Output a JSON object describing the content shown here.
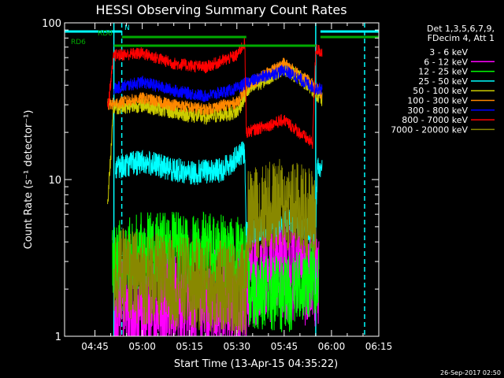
{
  "chart_data": {
    "type": "line",
    "title": "HESSI Observing Summary Count Rates",
    "xlabel": "Start Time (13-Apr-15 04:35:22)",
    "ylabel": "Count Rate (s⁻¹ detector⁻¹)",
    "yscale": "log",
    "xlim": [
      "04:35:22",
      "06:15:00"
    ],
    "ylim": [
      1,
      100
    ],
    "x_ticks": [
      "04:45",
      "05:00",
      "05:15",
      "05:30",
      "05:45",
      "06:00",
      "06:15"
    ],
    "y_ticks": [
      "1",
      "10",
      "100"
    ],
    "grid": false,
    "timestamp": "26-Sep-2017 02:50",
    "legend": {
      "position": "right",
      "header": [
        "Det 1,3,5,6,7,9,",
        "FDecim 4, Att 1"
      ]
    },
    "flags": [
      {
        "name": "N",
        "color": "#00ffff",
        "segments": [
          [
            "04:35:22",
            "04:53:30"
          ],
          [
            "05:56:30",
            "06:15:00"
          ]
        ]
      },
      {
        "name": "RD0",
        "color": "#00aa00",
        "segments": [
          [
            "04:53:30",
            "05:33:00"
          ],
          [
            "05:56:30",
            "06:15:00"
          ]
        ]
      },
      {
        "name": "RD6",
        "color": "#00aa00",
        "segments": [
          [
            "04:51:00",
            "05:33:00"
          ],
          [
            "05:33:00",
            "05:55:00"
          ]
        ]
      }
    ],
    "vlines": [
      {
        "x": "04:51:00",
        "color": "#00ffff",
        "style": "solid"
      },
      {
        "x": "04:53:30",
        "color": "#00ffff",
        "style": "dashed"
      },
      {
        "x": "05:55:00",
        "color": "#00ffff",
        "style": "solid"
      },
      {
        "x": "06:10:30",
        "color": "#00ffff",
        "style": "dashed"
      }
    ],
    "series": [
      {
        "name": "3 - 6 keV",
        "color": "#000000",
        "noise": 0.1,
        "points": [
          [
            "04:53:00",
            4
          ],
          [
            "05:10:00",
            4
          ],
          [
            "05:30:00",
            3.5
          ],
          [
            "05:33:30",
            2.5
          ],
          [
            "05:45:00",
            4
          ],
          [
            "05:55:00",
            3.5
          ]
        ]
      },
      {
        "name": "6 - 12 keV",
        "color": "#ff00ff",
        "noise": 0.35,
        "points": [
          [
            "04:51:00",
            1.5
          ],
          [
            "05:10:00",
            1.6
          ],
          [
            "05:33:00",
            1.7
          ],
          [
            "05:33:30",
            2.5
          ],
          [
            "05:45:00",
            2.8
          ],
          [
            "05:56:00",
            2.5
          ]
        ]
      },
      {
        "name": "12 - 25 keV",
        "color": "#00ff00",
        "noise": 0.25,
        "points": [
          [
            "04:50:30",
            3
          ],
          [
            "05:00:00",
            3.5
          ],
          [
            "05:20:00",
            3.5
          ],
          [
            "05:33:00",
            3.2
          ],
          [
            "05:33:30",
            2
          ],
          [
            "05:45:00",
            1.8
          ],
          [
            "05:56:00",
            2.5
          ]
        ]
      },
      {
        "name": "25 - 50 keV",
        "color": "#00ffff",
        "noise": 0.08,
        "points": [
          [
            "04:51:30",
            12
          ],
          [
            "05:00:00",
            13
          ],
          [
            "05:15:00",
            11
          ],
          [
            "05:25:00",
            11.5
          ],
          [
            "05:32:30",
            15
          ],
          [
            "05:33:00",
            4.5
          ],
          [
            "05:40:00",
            5
          ],
          [
            "05:47:00",
            5.5
          ],
          [
            "05:55:00",
            4.5
          ],
          [
            "05:55:30",
            12
          ],
          [
            "05:57:00",
            12
          ]
        ]
      },
      {
        "name": "50 - 100 keV",
        "color": "#cccc00",
        "noise": 0.05,
        "points": [
          [
            "04:49:00",
            7
          ],
          [
            "04:51:00",
            29
          ],
          [
            "05:00:00",
            30
          ],
          [
            "05:10:00",
            27
          ],
          [
            "05:20:00",
            25
          ],
          [
            "05:30:00",
            27
          ],
          [
            "05:33:30",
            37
          ],
          [
            "05:45:00",
            52
          ],
          [
            "05:53:00",
            40
          ],
          [
            "05:57:00",
            32
          ]
        ]
      },
      {
        "name": "100 - 300 keV",
        "color": "#ff8800",
        "noise": 0.04,
        "points": [
          [
            "04:49:00",
            30
          ],
          [
            "05:00:00",
            33
          ],
          [
            "05:10:00",
            30
          ],
          [
            "05:20:00",
            28
          ],
          [
            "05:30:00",
            31
          ],
          [
            "05:33:30",
            40
          ],
          [
            "05:45:00",
            55
          ],
          [
            "05:53:00",
            42
          ],
          [
            "05:57:00",
            35
          ]
        ]
      },
      {
        "name": "300 - 800 keV",
        "color": "#0000ff",
        "noise": 0.04,
        "points": [
          [
            "04:51:00",
            38
          ],
          [
            "05:00:00",
            42
          ],
          [
            "05:10:00",
            37
          ],
          [
            "05:20:00",
            34
          ],
          [
            "05:30:00",
            38
          ],
          [
            "05:33:30",
            42
          ],
          [
            "05:45:00",
            50
          ],
          [
            "05:55:00",
            38
          ],
          [
            "05:57:00",
            38
          ]
        ]
      },
      {
        "name": "800 - 7000 keV",
        "color": "#ff0000",
        "noise": 0.04,
        "points": [
          [
            "04:49:00",
            28
          ],
          [
            "04:51:00",
            62
          ],
          [
            "05:00:00",
            64
          ],
          [
            "05:10:00",
            55
          ],
          [
            "05:20:00",
            52
          ],
          [
            "05:30:00",
            62
          ],
          [
            "05:32:30",
            75
          ],
          [
            "05:33:00",
            20
          ],
          [
            "05:45:00",
            24
          ],
          [
            "05:54:00",
            17
          ],
          [
            "05:55:00",
            68
          ],
          [
            "05:57:00",
            65
          ]
        ]
      },
      {
        "name": "7000 - 20000 keV",
        "color": "#888800",
        "noise": 0.3,
        "points": [
          [
            "04:51:00",
            2.5
          ],
          [
            "05:10:00",
            2.2
          ],
          [
            "05:33:00",
            2.0
          ],
          [
            "05:33:30",
            6
          ],
          [
            "05:45:00",
            7
          ],
          [
            "05:55:00",
            6
          ]
        ]
      }
    ]
  }
}
